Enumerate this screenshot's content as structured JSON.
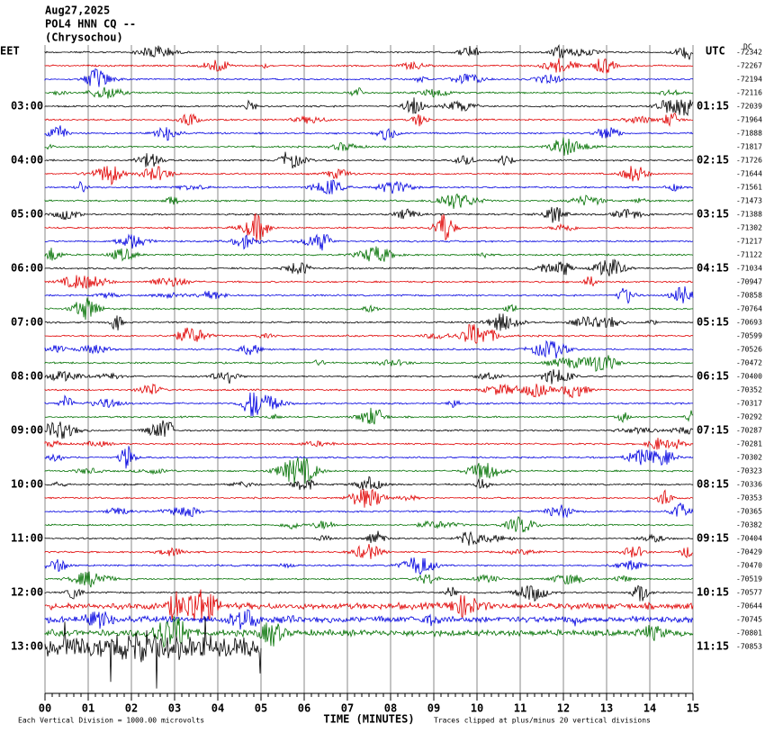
{
  "header": {
    "date": "Aug27,2025",
    "station": "POL4 HNN CQ --",
    "location": "(Chrysochou)"
  },
  "left_timezone": "EET",
  "right_timezone": "UTC",
  "dc_label": "DC",
  "left_times": [
    "03:00",
    "04:00",
    "05:00",
    "06:00",
    "07:00",
    "08:00",
    "09:00",
    "10:00",
    "11:00",
    "12:00",
    "13:00"
  ],
  "right_times": [
    "01:15",
    "02:15",
    "03:15",
    "04:15",
    "05:15",
    "06:15",
    "07:15",
    "08:15",
    "09:15",
    "10:15",
    "11:15"
  ],
  "trace_offsets": [
    -72342,
    -72267,
    -72194,
    -72116,
    -72039,
    -71964,
    -71888,
    -71817,
    -71726,
    -71644,
    -71561,
    -71473,
    -71388,
    -71302,
    -71217,
    -71122,
    -71034,
    -70947,
    -70858,
    -70764,
    -70693,
    -70599,
    -70526,
    -70472,
    -70400,
    -70352,
    -70317,
    -70292,
    -70287,
    -70281,
    -70302,
    -70323,
    -70336,
    -70353,
    -70365,
    -70382,
    -70404,
    -70429,
    -70470,
    -70519,
    -70577,
    -70644,
    -70745,
    -70801,
    -70853
  ],
  "x_ticks": [
    "00",
    "01",
    "02",
    "03",
    "04",
    "05",
    "06",
    "07",
    "08",
    "09",
    "10",
    "11",
    "12",
    "13",
    "14",
    "15"
  ],
  "x_axis_label": "TIME (MINUTES)",
  "footer_left": "Each Vertical Division = 1000.00 microvolts",
  "footer_right": "Traces clipped at plus/minus 20 vertical divisions"
}
